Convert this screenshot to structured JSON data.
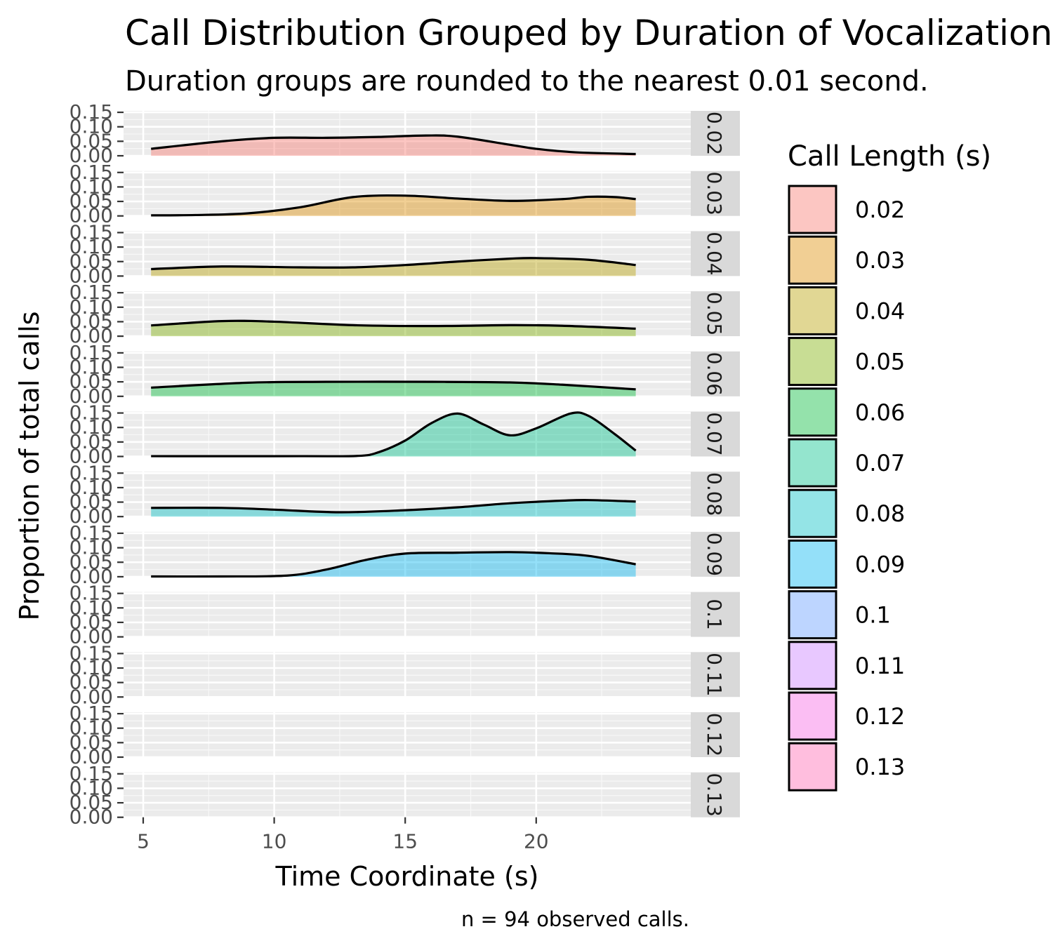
{
  "chart_data": {
    "type": "area",
    "title": "Call Distribution Grouped by Duration of Vocalization",
    "subtitle": "Duration groups are rounded to the nearest 0.01 second.",
    "xlabel": "Time Coordinate (s)",
    "ylabel": "Proportion of total calls",
    "caption": "n = 94 observed calls.",
    "xlim": [
      4.25,
      25.9
    ],
    "ylim": [
      0,
      0.155
    ],
    "x_ticks": [
      "5",
      "10",
      "15",
      "20"
    ],
    "y_ticks": [
      "0.00",
      "0.05",
      "0.10",
      "0.15"
    ],
    "grid": true,
    "legend": {
      "title": "Call Length (s)",
      "position": "right"
    },
    "series": [
      {
        "name": "0.02",
        "color": "#F8766D",
        "points": [
          [
            5.3,
            0.024
          ],
          [
            8,
            0.05
          ],
          [
            10,
            0.062
          ],
          [
            12,
            0.062
          ],
          [
            14,
            0.065
          ],
          [
            15.8,
            0.07
          ],
          [
            17,
            0.066
          ],
          [
            19,
            0.038
          ],
          [
            20,
            0.024
          ],
          [
            21.5,
            0.012
          ],
          [
            23.8,
            0.006
          ]
        ]
      },
      {
        "name": "0.03",
        "color": "#DE8C00",
        "points": [
          [
            5.3,
            0.002
          ],
          [
            7,
            0.003
          ],
          [
            9,
            0.009
          ],
          [
            11,
            0.03
          ],
          [
            13,
            0.065
          ],
          [
            15,
            0.07
          ],
          [
            17,
            0.06
          ],
          [
            19,
            0.052
          ],
          [
            21,
            0.058
          ],
          [
            22,
            0.066
          ],
          [
            23,
            0.065
          ],
          [
            23.8,
            0.058
          ]
        ]
      },
      {
        "name": "0.04",
        "color": "#B79F00",
        "points": [
          [
            5.3,
            0.024
          ],
          [
            8,
            0.033
          ],
          [
            11,
            0.03
          ],
          [
            13,
            0.03
          ],
          [
            15,
            0.038
          ],
          [
            17,
            0.05
          ],
          [
            19,
            0.06
          ],
          [
            20,
            0.062
          ],
          [
            22,
            0.056
          ],
          [
            23.8,
            0.038
          ]
        ]
      },
      {
        "name": "0.05",
        "color": "#7CAE00",
        "points": [
          [
            5.3,
            0.037
          ],
          [
            8,
            0.052
          ],
          [
            10,
            0.05
          ],
          [
            13,
            0.038
          ],
          [
            16,
            0.035
          ],
          [
            19,
            0.038
          ],
          [
            21,
            0.036
          ],
          [
            23.8,
            0.026
          ]
        ]
      },
      {
        "name": "0.06",
        "color": "#00BA38",
        "points": [
          [
            5.3,
            0.03
          ],
          [
            9,
            0.047
          ],
          [
            12,
            0.05
          ],
          [
            16,
            0.05
          ],
          [
            19,
            0.048
          ],
          [
            21,
            0.04
          ],
          [
            23.8,
            0.024
          ]
        ]
      },
      {
        "name": "0.07",
        "color": "#00C08B",
        "points": [
          [
            5.3,
            0.001
          ],
          [
            11,
            0.001
          ],
          [
            13.2,
            0.002
          ],
          [
            14,
            0.015
          ],
          [
            15,
            0.055
          ],
          [
            16,
            0.115
          ],
          [
            17,
            0.148
          ],
          [
            18,
            0.11
          ],
          [
            19,
            0.073
          ],
          [
            20,
            0.097
          ],
          [
            21.3,
            0.148
          ],
          [
            22,
            0.14
          ],
          [
            23,
            0.077
          ],
          [
            23.8,
            0.02
          ]
        ]
      },
      {
        "name": "0.08",
        "color": "#00BFC4",
        "points": [
          [
            5.3,
            0.03
          ],
          [
            8,
            0.03
          ],
          [
            10,
            0.024
          ],
          [
            12.5,
            0.015
          ],
          [
            15,
            0.022
          ],
          [
            17,
            0.032
          ],
          [
            19,
            0.046
          ],
          [
            21,
            0.055
          ],
          [
            22,
            0.057
          ],
          [
            23.8,
            0.052
          ]
        ]
      },
      {
        "name": "0.09",
        "color": "#00B4F0",
        "points": [
          [
            5.3,
            0.001
          ],
          [
            8,
            0.001
          ],
          [
            10.5,
            0.004
          ],
          [
            12,
            0.025
          ],
          [
            13.5,
            0.058
          ],
          [
            15,
            0.08
          ],
          [
            17,
            0.083
          ],
          [
            19,
            0.085
          ],
          [
            20.5,
            0.081
          ],
          [
            22,
            0.072
          ],
          [
            23.8,
            0.043
          ]
        ]
      },
      {
        "name": "0.1",
        "color": "#619CFF",
        "points": []
      },
      {
        "name": "0.11",
        "color": "#C77CFF",
        "points": []
      },
      {
        "name": "0.12",
        "color": "#F564E3",
        "points": []
      },
      {
        "name": "0.13",
        "color": "#FF64B0",
        "points": []
      }
    ]
  }
}
